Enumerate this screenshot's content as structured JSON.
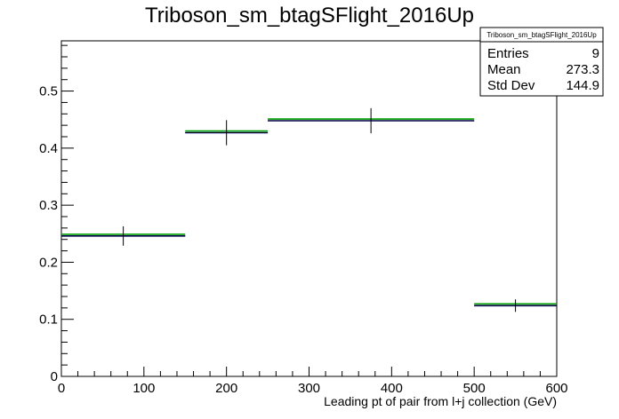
{
  "chart_data": {
    "type": "bar",
    "title": "Triboson_sm_btagSFlight_2016Up",
    "xlabel": "Leading pt of pair from l+j collection (GeV)",
    "ylabel": "",
    "xlim": [
      0,
      600
    ],
    "ylim": [
      0,
      0.588
    ],
    "x_ticks": [
      0,
      100,
      200,
      300,
      400,
      500,
      600
    ],
    "y_ticks": [
      0,
      0.1,
      0.2,
      0.3,
      0.4,
      0.5
    ],
    "x_tick_labels": [
      "0",
      "100",
      "200",
      "300",
      "400",
      "500",
      "600"
    ],
    "y_tick_labels": [
      "0",
      "0.1",
      "0.2",
      "0.3",
      "0.4",
      "0.5"
    ],
    "bins": [
      {
        "low": 0,
        "high": 150,
        "center": 75,
        "value": 0.246,
        "error": 0.017
      },
      {
        "low": 150,
        "high": 250,
        "center": 200,
        "value": 0.427,
        "error": 0.022
      },
      {
        "low": 250,
        "high": 500,
        "center": 375,
        "value": 0.448,
        "error": 0.022
      },
      {
        "low": 500,
        "high": 600,
        "center": 550,
        "value": 0.124,
        "error": 0.011
      }
    ],
    "series": [
      {
        "name": "",
        "color": "#00a000",
        "offset": 0.003
      },
      {
        "name": "",
        "color": "#0000c0",
        "offset": 0
      },
      {
        "name": "",
        "color": "#000000",
        "offset": 0
      }
    ],
    "stats_box": {
      "title": "Triboson_sm_btagSFlight_2016Up",
      "rows": [
        {
          "label": "Entries",
          "value": "9"
        },
        {
          "label": "Mean",
          "value": "273.3"
        },
        {
          "label": "Std Dev",
          "value": "144.9"
        }
      ]
    },
    "grid": false,
    "legend": "none"
  }
}
